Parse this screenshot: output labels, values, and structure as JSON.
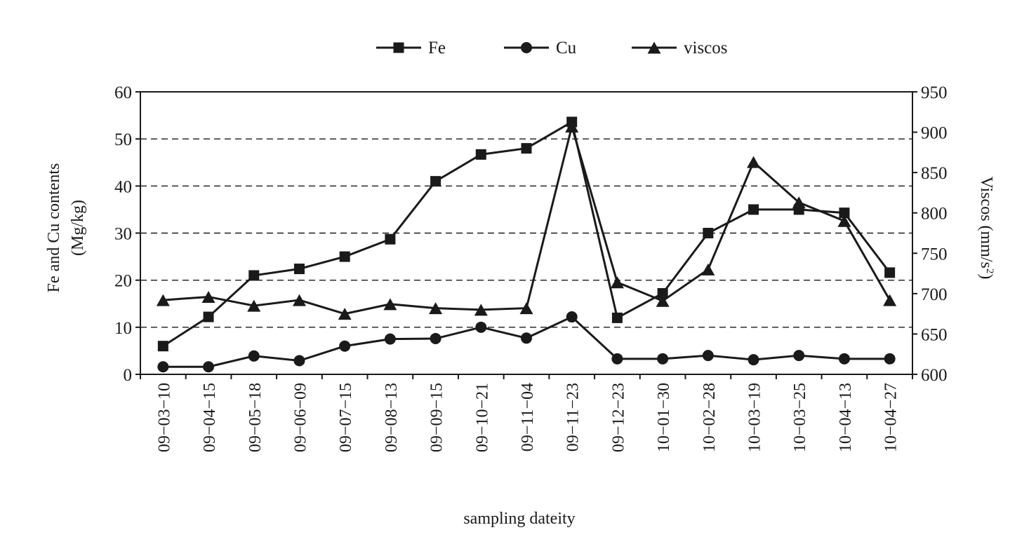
{
  "chart_data": {
    "type": "line",
    "title": "",
    "xlabel": "sampling dateity",
    "ylabel": "Fe and Cu contents",
    "ylabel_unit": "(Mg/kg)",
    "y2label": "Viscos (mm/s",
    "y2label_exp": "2",
    "y2label_close": ")",
    "ylim": [
      0,
      60
    ],
    "y2lim": [
      600,
      950
    ],
    "yticks": [
      "0",
      "10",
      "20",
      "30",
      "40",
      "50",
      "60"
    ],
    "y2ticks": [
      "600",
      "650",
      "700",
      "750",
      "800",
      "850",
      "900",
      "950"
    ],
    "grid": "dashed horizontal",
    "legend_position": "top-center",
    "categories": [
      "09−03−10",
      "09−04−15",
      "09−05−18",
      "09−06−09",
      "09−07−15",
      "09−08−13",
      "09−09−15",
      "09−10−21",
      "09−11−04",
      "09−11−23",
      "09−12−23",
      "10−01−30",
      "10−02−28",
      "10−03−19",
      "10−03−25",
      "10−04−13",
      "10−04−27"
    ],
    "series": [
      {
        "name": "Fe",
        "axis": "left",
        "marker": "square",
        "values": [
          6,
          12.2,
          21,
          22.4,
          25,
          28.7,
          41,
          46.7,
          48,
          53.6,
          12,
          17.2,
          30,
          35,
          35,
          34.3,
          21.6
        ]
      },
      {
        "name": "Cu",
        "axis": "left",
        "marker": "circle",
        "values": [
          1.6,
          1.6,
          3.9,
          2.9,
          6,
          7.5,
          7.6,
          10,
          7.7,
          12.2,
          3.3,
          3.3,
          4,
          3.1,
          4,
          3.3,
          3.3
        ]
      },
      {
        "name": "viscos",
        "axis": "right",
        "marker": "triangle",
        "values": [
          692,
          696,
          685,
          692,
          675,
          687,
          682,
          680,
          682,
          907,
          714,
          691,
          730,
          863,
          813,
          790,
          692
        ]
      }
    ]
  }
}
